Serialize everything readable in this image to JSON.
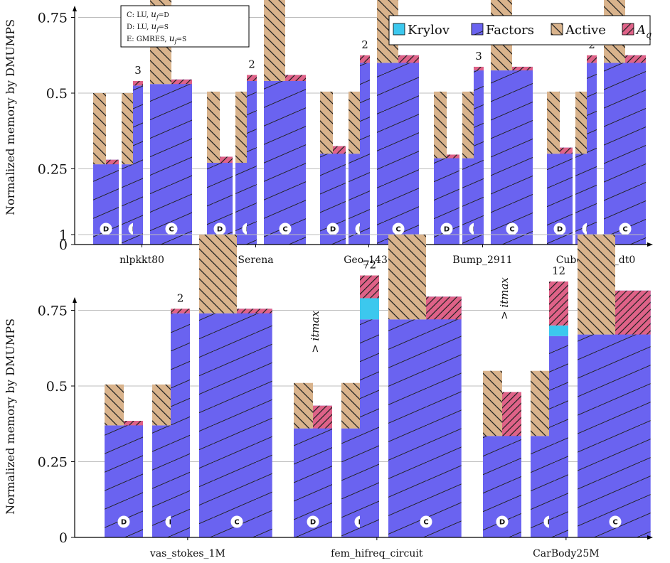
{
  "chart_data": [
    {
      "type": "bar",
      "ylabel": "Normalized memory by DMUMPS",
      "ylim": [
        0,
        1.5
      ],
      "yticks": [
        0,
        0.25,
        0.5,
        0.75,
        1
      ],
      "ytick_labels": [
        "0",
        "0.25",
        "0.5",
        "0.75",
        "1"
      ],
      "grid": true,
      "legend_position": "top-right",
      "legend": [
        {
          "key": "krylov",
          "label": "Krylov",
          "color": "#3cc8ee"
        },
        {
          "key": "factors",
          "label": "Factors",
          "color": "#6a63f0"
        },
        {
          "key": "active",
          "label": "Active",
          "color": "#d9b38c"
        },
        {
          "key": "aq",
          "label": "A",
          "sub": "q",
          "color": "#df6288"
        }
      ],
      "caption": {
        "position": "top-left",
        "lines": [
          {
            "text": "C: LU, u",
            "sub": "f",
            "rest": "=D"
          },
          {
            "text": "D: LU, u",
            "sub": "f",
            "rest": "=S"
          },
          {
            "text": "E: GMRES, u",
            "sub": "f",
            "rest": "=S"
          }
        ]
      },
      "categories": [
        "nlpkkt80",
        "Serena",
        "Geo_1438",
        "Bump_2911",
        "Cube_Coup_dt0"
      ],
      "groups": [
        {
          "bars": [
            {
              "label": "D",
              "factors": 0.265,
              "active": 0.235,
              "aq": 0.015,
              "krylov": 0
            },
            {
              "label": "E",
              "factors": 0.265,
              "active": 0.235,
              "krylov": 0,
              "note": ""
            },
            {
              "label": "E",
              "factors": 0.525,
              "aq": 0.015,
              "krylov": 0,
              "note": "3"
            },
            {
              "label": "C",
              "factors": 0.53,
              "active": 0.47,
              "aq": 0.015,
              "krylov": 0
            }
          ]
        },
        {
          "bars": [
            {
              "label": "D",
              "factors": 0.27,
              "active": 0.235,
              "aq": 0.02,
              "krylov": 0
            },
            {
              "label": "E",
              "factors": 0.27,
              "active": 0.235,
              "krylov": 0,
              "note": ""
            },
            {
              "label": "E",
              "factors": 0.54,
              "aq": 0.02,
              "krylov": 0,
              "note": "2"
            },
            {
              "label": "C",
              "factors": 0.54,
              "active": 0.46,
              "aq": 0.02,
              "krylov": 0
            }
          ]
        },
        {
          "bars": [
            {
              "label": "D",
              "factors": 0.3,
              "active": 0.205,
              "aq": 0.025,
              "krylov": 0
            },
            {
              "label": "E",
              "factors": 0.3,
              "active": 0.205,
              "krylov": 0,
              "note": ""
            },
            {
              "label": "E",
              "factors": 0.6,
              "aq": 0.025,
              "krylov": 0,
              "note": "2"
            },
            {
              "label": "C",
              "factors": 0.6,
              "active": 0.4,
              "aq": 0.025,
              "krylov": 0
            }
          ]
        },
        {
          "bars": [
            {
              "label": "D",
              "factors": 0.285,
              "active": 0.22,
              "aq": 0.012,
              "krylov": 0
            },
            {
              "label": "E",
              "factors": 0.285,
              "active": 0.22,
              "krylov": 0,
              "note": ""
            },
            {
              "label": "E",
              "factors": 0.575,
              "aq": 0.012,
              "krylov": 0,
              "note": "3"
            },
            {
              "label": "C",
              "factors": 0.575,
              "active": 0.425,
              "aq": 0.012,
              "krylov": 0
            }
          ]
        },
        {
          "bars": [
            {
              "label": "D",
              "factors": 0.3,
              "active": 0.205,
              "aq": 0.02,
              "krylov": 0
            },
            {
              "label": "E",
              "factors": 0.3,
              "active": 0.205,
              "krylov": 0,
              "note": ""
            },
            {
              "label": "E",
              "factors": 0.6,
              "aq": 0.025,
              "krylov": 0,
              "note": "2"
            },
            {
              "label": "C",
              "factors": 0.6,
              "active": 0.4,
              "aq": 0.025,
              "krylov": 0
            }
          ]
        }
      ]
    },
    {
      "type": "bar",
      "ylabel": "Normalized memory by DMUMPS",
      "ylim": [
        0,
        1.5
      ],
      "yticks": [
        0,
        0.25,
        0.5,
        0.75,
        1
      ],
      "ytick_labels": [
        "0",
        "0.25",
        "0.5",
        "0.75",
        "1"
      ],
      "grid": true,
      "categories": [
        "vas_stokes_1M",
        "fem_hifreq_circuit",
        "CarBody25M"
      ],
      "groups": [
        {
          "bars": [
            {
              "label": "D",
              "factors": 0.37,
              "active": 0.135,
              "aq": 0.015,
              "krylov": 0
            },
            {
              "label": "E",
              "factors": 0.37,
              "active": 0.135,
              "krylov": 0,
              "note": ""
            },
            {
              "label": "E",
              "factors": 0.74,
              "aq": 0.015,
              "krylov": 0,
              "note": "2"
            },
            {
              "label": "C",
              "factors": 0.74,
              "active": 0.26,
              "aq": 0.015,
              "krylov": 0
            }
          ]
        },
        {
          "bars": [
            {
              "label": "D",
              "factors": 0.36,
              "active": 0.15,
              "aq": 0.075,
              "krylov": 0,
              "note": "> itmax"
            },
            {
              "label": "E",
              "factors": 0.36,
              "active": 0.15,
              "krylov": 0,
              "note": ""
            },
            {
              "label": "E",
              "factors": 0.72,
              "aq": 0.075,
              "krylov": 0.07,
              "note": "72"
            },
            {
              "label": "C",
              "factors": 0.72,
              "active": 0.28,
              "aq": 0.075,
              "krylov": 0
            }
          ]
        },
        {
          "bars": [
            {
              "label": "D",
              "factors": 0.335,
              "active": 0.215,
              "aq": 0.145,
              "krylov": 0,
              "note": "> itmax"
            },
            {
              "label": "E",
              "factors": 0.335,
              "active": 0.215,
              "krylov": 0,
              "note": ""
            },
            {
              "label": "E",
              "factors": 0.665,
              "aq": 0.145,
              "krylov": 0.035,
              "note": "12"
            },
            {
              "label": "C",
              "factors": 0.67,
              "active": 0.33,
              "aq": 0.145,
              "krylov": 0
            }
          ]
        }
      ]
    }
  ]
}
